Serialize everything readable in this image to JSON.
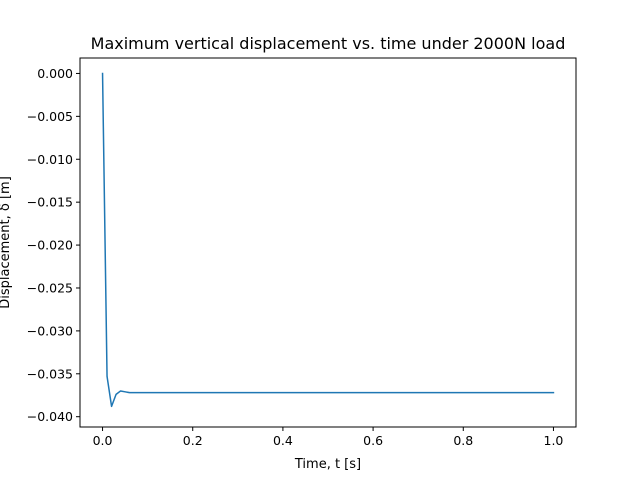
{
  "chart_data": {
    "type": "line",
    "title": "Maximum vertical displacement vs. time under 2000N load",
    "xlabel": "Time, t [s]",
    "ylabel": "Displacement, δ [m]",
    "xlim": [
      -0.05,
      1.05
    ],
    "ylim": [
      -0.0412,
      0.0018
    ],
    "xticks": [
      0.0,
      0.2,
      0.4,
      0.6,
      0.8,
      1.0
    ],
    "xtick_labels": [
      "0.0",
      "0.2",
      "0.4",
      "0.6",
      "0.8",
      "1.0"
    ],
    "yticks": [
      0.0,
      -0.005,
      -0.01,
      -0.015,
      -0.02,
      -0.025,
      -0.03,
      -0.035,
      -0.04
    ],
    "ytick_labels": [
      "0.000",
      "−0.005",
      "−0.010",
      "−0.015",
      "−0.020",
      "−0.025",
      "−0.030",
      "−0.035",
      "−0.040"
    ],
    "grid": false,
    "series": [
      {
        "color": "#1f77b4",
        "x": [
          0.0,
          0.01,
          0.02,
          0.03,
          0.04,
          0.05,
          0.06,
          0.1,
          0.2,
          0.3,
          0.4,
          0.5,
          0.6,
          0.7,
          0.8,
          0.9,
          1.0
        ],
        "y": [
          0.0,
          -0.0353,
          -0.0388,
          -0.0374,
          -0.037,
          -0.0371,
          -0.0372,
          -0.0372,
          -0.0372,
          -0.0372,
          -0.0372,
          -0.0372,
          -0.0372,
          -0.0372,
          -0.0372,
          -0.0372,
          -0.0372
        ]
      }
    ]
  }
}
